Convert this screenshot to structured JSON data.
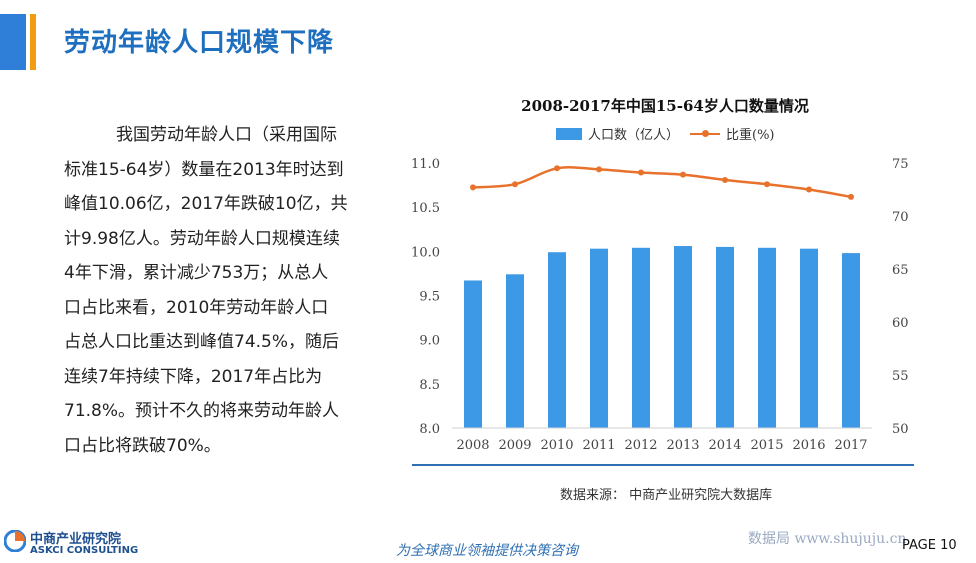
{
  "header": {
    "title": "劳动年龄人口规模下降"
  },
  "body": {
    "lines": [
      "我国劳动年龄人口（采用国际",
      "标准15-64岁）数量在2013年时达到",
      "峰值10.06亿，2017年跌破10亿，共",
      "计9.98亿人。劳动年龄人口规模连续",
      "4年下滑，累计减少753万；从总人",
      "口占比来看，2010年劳动年龄人口",
      "占总人口比重达到峰值74.5%，随后",
      "连续7年持续下降，2017年占比为",
      "71.8%。预计不久的将来劳动年龄人",
      "口占比将跌破70%。"
    ]
  },
  "chart_data": {
    "type": "bar",
    "title": "2008-2017年中国15-64岁人口数量情况",
    "categories": [
      "2008",
      "2009",
      "2010",
      "2011",
      "2012",
      "2013",
      "2014",
      "2015",
      "2016",
      "2017"
    ],
    "series": [
      {
        "name": "人口数（亿人）",
        "type": "bar",
        "axis": "left",
        "color": "#3d98e6",
        "values": [
          9.67,
          9.74,
          9.99,
          10.03,
          10.04,
          10.06,
          10.05,
          10.04,
          10.03,
          9.98
        ]
      },
      {
        "name": "比重(%)",
        "type": "line",
        "axis": "right",
        "color": "#e8722c",
        "values": [
          72.7,
          73.0,
          74.5,
          74.4,
          74.1,
          73.9,
          73.4,
          73.0,
          72.5,
          71.8
        ]
      }
    ],
    "y_left": {
      "ylim": [
        8.0,
        11.0
      ],
      "ticks": [
        "8.0",
        "8.5",
        "9.0",
        "9.5",
        "10.0",
        "10.5",
        "11.0"
      ]
    },
    "y_right": {
      "ylim": [
        50,
        75
      ],
      "ticks": [
        "50",
        "55",
        "60",
        "65",
        "70",
        "75"
      ]
    },
    "grid": false,
    "legend": "top"
  },
  "source": "数据来源：  中商产业研究院大数据库",
  "footer": {
    "logo_cn": "中商产业研究院",
    "logo_en": "ASKCI CONSULTING",
    "slogan": "为全球商业领袖提供决策咨询",
    "watermark": "数据局 www.shujuju.cn",
    "page": "PAGE  10"
  },
  "colors": {
    "accent_blue": "#2f7ed8",
    "accent_orange": "#f39c12",
    "bar": "#3d98e6",
    "line": "#e8722c"
  }
}
